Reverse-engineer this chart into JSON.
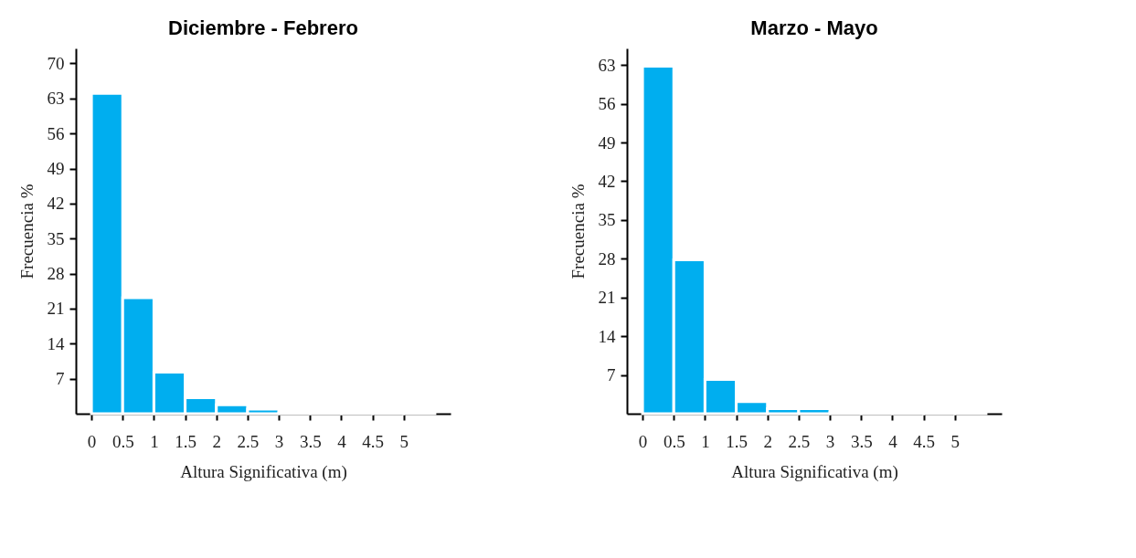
{
  "chart_data": [
    {
      "type": "histogram",
      "title": "Diciembre - Febrero",
      "xlabel": "Altura Significativa (m)",
      "ylabel": "Frecuencia %",
      "color": "#00aeef",
      "bins": [
        0,
        0.5,
        1,
        1.5,
        2,
        2.5,
        3,
        3.5,
        4,
        4.5,
        5,
        5.5
      ],
      "values": [
        64.0,
        23.2,
        8.3,
        3.2,
        1.8,
        0.9,
        0.2,
        0.2,
        0.2,
        0.2,
        0.2
      ],
      "xlim": [
        -0.25,
        5.75
      ],
      "xticks": [
        0,
        0.5,
        1,
        1.5,
        2,
        2.5,
        3,
        3.5,
        4,
        4.5,
        5
      ],
      "ylim": [
        0,
        73
      ],
      "yticks": [
        7,
        14,
        21,
        28,
        35,
        42,
        49,
        56,
        63,
        70
      ],
      "grid": false
    },
    {
      "type": "histogram",
      "title": "Marzo - Mayo",
      "xlabel": "Altura Significativa (m)",
      "ylabel": "Frecuencia %",
      "color": "#00aeef",
      "bins": [
        0,
        0.5,
        1,
        1.5,
        2,
        2.5,
        3,
        3.5,
        4,
        4.5,
        5,
        5.5
      ],
      "values": [
        62.8,
        27.8,
        6.2,
        2.2,
        0.9,
        0.9,
        0.2,
        0.2,
        0.2,
        0.2,
        0.2
      ],
      "xlim": [
        -0.25,
        5.75
      ],
      "xticks": [
        0,
        0.5,
        1,
        1.5,
        2,
        2.5,
        3,
        3.5,
        4,
        4.5,
        5
      ],
      "ylim": [
        0,
        66
      ],
      "yticks": [
        7,
        14,
        21,
        28,
        35,
        42,
        49,
        56,
        63
      ],
      "grid": false
    }
  ]
}
